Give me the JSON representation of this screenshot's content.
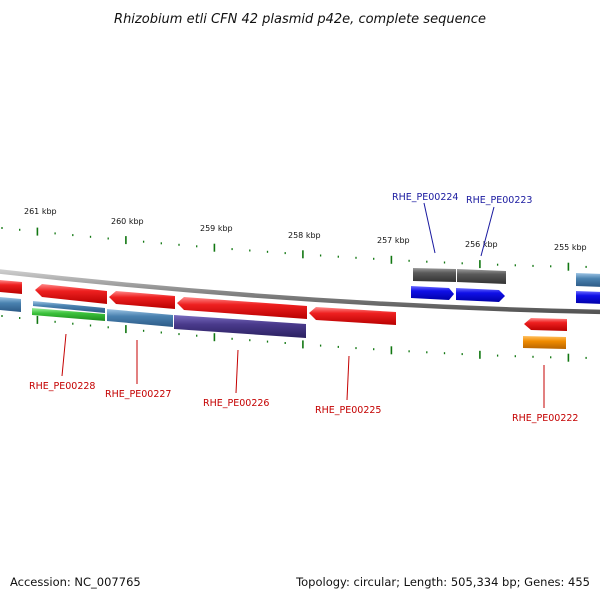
{
  "title": "Rhizobium etli CFN 42 plasmid p42e, complete sequence",
  "footer": {
    "accession": "Accession: NC_007765",
    "summary": "Topology: circular; Length: 505,334 bp; Genes: 455"
  },
  "kbp_ticks": [
    "261 kbp",
    "260 kbp",
    "259 kbp",
    "258 kbp",
    "257 kbp",
    "256 kbp",
    "255 kbp"
  ],
  "gene_labels": [
    {
      "text": "RHE_PE00224",
      "color": "#1a1aa0"
    },
    {
      "text": "RHE_PE00223",
      "color": "#1a1aa0"
    },
    {
      "text": "RHE_PE00228",
      "color": "#c40000"
    },
    {
      "text": "RHE_PE00227",
      "color": "#c40000"
    },
    {
      "text": "RHE_PE00226",
      "color": "#c40000"
    },
    {
      "text": "RHE_PE00225",
      "color": "#c40000"
    },
    {
      "text": "RHE_PE00222",
      "color": "#c40000"
    }
  ],
  "colors": {
    "cds_red": "#e41a1a",
    "cds_blue": "#1010e0",
    "gene_gray": "#555555",
    "steel_blue": "#4a82b0",
    "green": "#3cc23c",
    "purple": "#4a3b8c",
    "orange": "#f08c00",
    "tick_green": "#117711",
    "backbone": "#888888"
  }
}
